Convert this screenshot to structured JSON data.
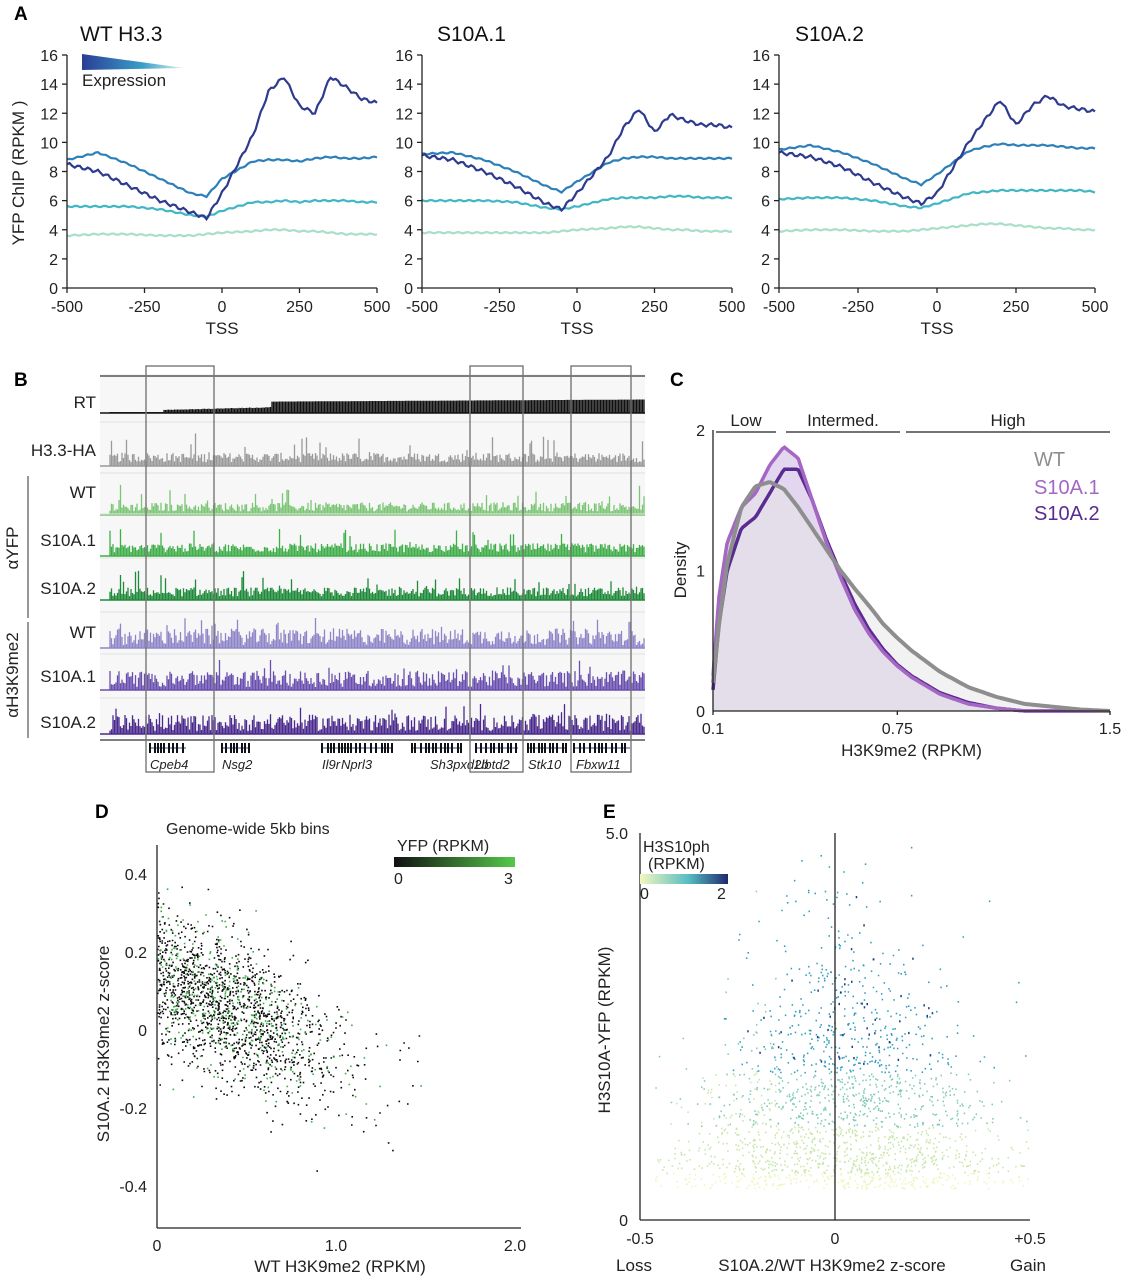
{
  "panels": {
    "A": "A",
    "B": "B",
    "C": "C",
    "D": "D",
    "E": "E"
  },
  "colors": {
    "expr": [
      "#2e3a8e",
      "#2c7fb8",
      "#41b6c4",
      "#a8dfc6"
    ],
    "gray": "#9a9a9a",
    "greens": [
      "#7cc576",
      "#3fae49",
      "#1f8a3a"
    ],
    "purples": [
      "#8f86c9",
      "#6a4fb0",
      "#4b2a8e"
    ],
    "wt_density": "#8e8e8e",
    "s10a1_density": "#a467c4",
    "s10a2_density": "#5a2b91",
    "fill_density": "#d8c9ea"
  },
  "panel_a": {
    "expression_label": "Expression",
    "ylabel": "YFP ChIP (RPKM )",
    "xlabel": "TSS",
    "xticks": [
      "-500",
      "-250",
      "0",
      "250",
      "500"
    ],
    "yticks": [
      "0",
      "2",
      "4",
      "6",
      "8",
      "10",
      "12",
      "14",
      "16"
    ]
  },
  "panel_b": {
    "group_yfp": "αYFP",
    "group_k9": "αH3K9me2",
    "tracks": [
      "RT",
      "H3.3-HA",
      "WT",
      "S10A.1",
      "S10A.2",
      "WT",
      "S10A.1",
      "S10A.2"
    ],
    "genes": [
      "Cpeb4",
      "Nsg2",
      "Il9r",
      "Nprl3",
      "Sh3pxd2b",
      "Ubtd2",
      "Stk10",
      "Fbxw11"
    ]
  },
  "chart_data": [
    {
      "type": "line",
      "title": "WT H3.3",
      "xlabel": "TSS",
      "ylabel": "YFP ChIP (RPKM )",
      "x": [
        -500,
        -400,
        -300,
        -200,
        -100,
        -50,
        0,
        100,
        150,
        200,
        250,
        300,
        350,
        400,
        450,
        500
      ],
      "ylim": [
        0,
        16
      ],
      "series": [
        {
          "values": [
            8.5,
            8.0,
            7.0,
            6.0,
            5.2,
            4.8,
            6.5,
            10.5,
            13.5,
            14.5,
            12.5,
            12.0,
            14.5,
            13.8,
            13.0,
            12.7
          ]
        },
        {
          "values": [
            8.8,
            9.3,
            8.5,
            7.5,
            6.5,
            6.3,
            7.5,
            8.7,
            8.8,
            8.8,
            8.7,
            8.9,
            9.0,
            8.9,
            8.9,
            9.0
          ]
        },
        {
          "values": [
            5.6,
            5.6,
            5.6,
            5.4,
            5.0,
            4.9,
            5.3,
            5.9,
            5.9,
            6.0,
            5.9,
            6.0,
            6.0,
            6.0,
            5.9,
            5.9
          ]
        },
        {
          "values": [
            3.6,
            3.7,
            3.7,
            3.6,
            3.6,
            3.7,
            3.8,
            3.9,
            4.0,
            4.0,
            3.9,
            3.9,
            3.8,
            3.7,
            3.7,
            3.7
          ]
        }
      ]
    },
    {
      "type": "line",
      "title": "S10A.1",
      "xlabel": "TSS",
      "x": [
        -500,
        -400,
        -300,
        -200,
        -100,
        -50,
        0,
        100,
        150,
        200,
        250,
        300,
        350,
        400,
        450,
        500
      ],
      "ylim": [
        0,
        16
      ],
      "series": [
        {
          "values": [
            9.1,
            8.8,
            8.0,
            7.0,
            5.8,
            5.4,
            6.5,
            9.0,
            11.0,
            12.3,
            10.7,
            11.9,
            11.5,
            11.2,
            11.2,
            11.0
          ]
        },
        {
          "values": [
            9.2,
            9.3,
            8.8,
            8.0,
            7.0,
            6.6,
            7.3,
            8.6,
            8.9,
            9.0,
            9.0,
            8.9,
            8.9,
            8.9,
            8.9,
            8.9
          ]
        },
        {
          "values": [
            6.0,
            6.0,
            6.0,
            5.9,
            5.5,
            5.4,
            5.6,
            6.1,
            6.2,
            6.2,
            6.2,
            6.3,
            6.3,
            6.2,
            6.2,
            6.2
          ]
        },
        {
          "values": [
            3.8,
            3.8,
            3.8,
            3.8,
            3.8,
            3.9,
            4.0,
            4.1,
            4.2,
            4.2,
            4.1,
            4.0,
            4.0,
            3.9,
            3.9,
            3.9
          ]
        }
      ]
    },
    {
      "type": "line",
      "title": "S10A.2",
      "xlabel": "TSS",
      "x": [
        -500,
        -400,
        -300,
        -200,
        -100,
        -50,
        0,
        100,
        150,
        200,
        250,
        300,
        350,
        400,
        450,
        500
      ],
      "ylim": [
        0,
        16
      ],
      "series": [
        {
          "values": [
            9.3,
            9.0,
            8.3,
            7.2,
            6.2,
            5.8,
            6.5,
            10.0,
            11.5,
            12.9,
            11.2,
            12.5,
            13.2,
            12.5,
            12.3,
            12.1
          ]
        },
        {
          "values": [
            9.5,
            9.8,
            9.3,
            8.5,
            7.5,
            7.1,
            7.8,
            9.4,
            9.7,
            9.9,
            9.8,
            9.8,
            9.8,
            9.7,
            9.6,
            9.6
          ]
        },
        {
          "values": [
            6.1,
            6.2,
            6.2,
            6.0,
            5.6,
            5.5,
            5.8,
            6.5,
            6.6,
            6.7,
            6.7,
            6.7,
            6.7,
            6.7,
            6.7,
            6.6
          ]
        },
        {
          "values": [
            3.9,
            4.0,
            4.0,
            3.9,
            3.9,
            4.0,
            4.1,
            4.3,
            4.4,
            4.4,
            4.3,
            4.2,
            4.1,
            4.1,
            4.0,
            4.0
          ]
        }
      ]
    },
    {
      "type": "area",
      "xlabel": "H3K9me2 (RPKM)",
      "ylabel": "Density",
      "xticks": [
        "0.1",
        "0.75",
        "1.5"
      ],
      "yticks": [
        "0",
        "1",
        "2"
      ],
      "xlim": [
        0.1,
        1.5
      ],
      "ylim": [
        0,
        2
      ],
      "ranges": [
        "Low",
        "Intermed.",
        "High"
      ],
      "x": [
        0.1,
        0.12,
        0.15,
        0.2,
        0.25,
        0.3,
        0.35,
        0.4,
        0.45,
        0.5,
        0.55,
        0.6,
        0.65,
        0.7,
        0.75,
        0.8,
        0.9,
        1.0,
        1.1,
        1.2,
        1.3,
        1.4,
        1.5
      ],
      "series": [
        {
          "name": "WT",
          "values": [
            0.2,
            0.6,
            1.05,
            1.45,
            1.6,
            1.63,
            1.58,
            1.45,
            1.3,
            1.15,
            1.0,
            0.87,
            0.75,
            0.62,
            0.52,
            0.43,
            0.28,
            0.17,
            0.1,
            0.05,
            0.03,
            0.01,
            0.0
          ]
        },
        {
          "name": "S10A.1",
          "values": [
            0.25,
            0.8,
            1.2,
            1.45,
            1.55,
            1.75,
            1.88,
            1.8,
            1.5,
            1.2,
            0.95,
            0.72,
            0.55,
            0.42,
            0.32,
            0.24,
            0.12,
            0.05,
            0.02,
            0.0,
            0.0,
            0.0,
            0.0
          ]
        },
        {
          "name": "S10A.2",
          "values": [
            0.15,
            0.6,
            1.0,
            1.3,
            1.38,
            1.55,
            1.72,
            1.72,
            1.5,
            1.22,
            0.98,
            0.76,
            0.58,
            0.44,
            0.33,
            0.25,
            0.13,
            0.06,
            0.02,
            0.0,
            0.0,
            0.0,
            0.0
          ]
        }
      ]
    },
    {
      "type": "scatter",
      "title": "Genome-wide 5kb bins",
      "xlabel": "WT H3K9me2 (RPKM)",
      "ylabel": "S10A.2 H3K9me2 z-score",
      "xticks": [
        "0",
        "1.0",
        "2.0"
      ],
      "yticks": [
        "0.4",
        "0.2",
        "0",
        "-0.2",
        "-0.4"
      ],
      "xlim": [
        0,
        2.0
      ],
      "ylim": [
        -0.5,
        0.5
      ],
      "colorbar": {
        "label": "YFP (RPKM)",
        "min": "0",
        "max": "3",
        "colors": [
          "#111111",
          "#55c94a"
        ]
      }
    },
    {
      "type": "scatter",
      "xlabel": "S10A.2/WT H3K9me2 z-score",
      "ylabel": "H3S10A-YFP (RPKM)",
      "xticks": [
        "-0.5",
        "0",
        "+0.5"
      ],
      "yticks": [
        "5.0",
        "0"
      ],
      "xlim": [
        -0.5,
        0.5
      ],
      "ylim": [
        0,
        5.0
      ],
      "xend_labels": [
        "Loss",
        "Gain"
      ],
      "colorbar": {
        "label": "H3S10ph (RPKM)",
        "min": "0",
        "max": "2",
        "colors": [
          "#f3f7bf",
          "#57bdc2",
          "#1e2a6e"
        ]
      }
    }
  ]
}
